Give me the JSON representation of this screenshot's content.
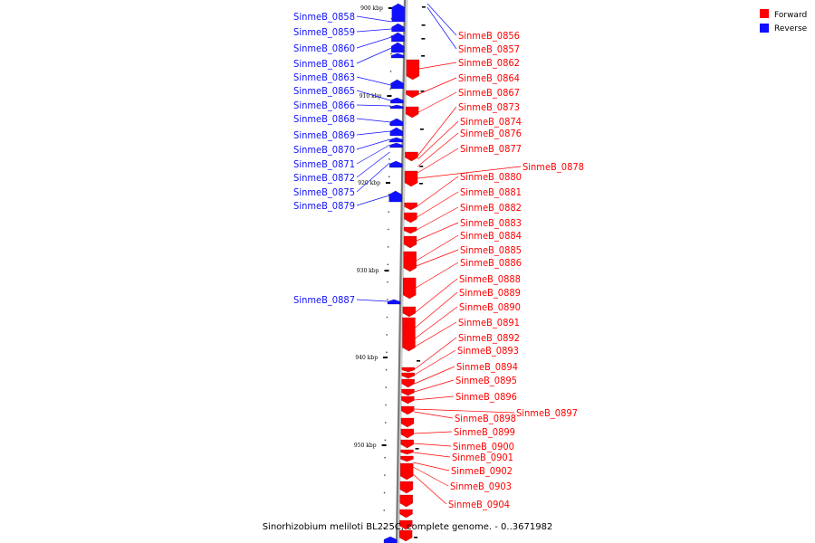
{
  "legend": {
    "forward_label": "Forward",
    "reverse_label": "Reverse",
    "forward_color": "#ff0000",
    "reverse_color": "#1010ff"
  },
  "caption": "Sinorhizobium meliloti BL225C, complete genome. - 0..3671982",
  "ticks": [
    "900 kbp",
    "910 kbp",
    "920 kbp",
    "930 kbp",
    "940 kbp",
    "950 kbp"
  ],
  "reverse_genes": [
    "SinmeB_0858",
    "SinmeB_0859",
    "SinmeB_0860",
    "SinmeB_0861",
    "SinmeB_0863",
    "SinmeB_0865",
    "SinmeB_0866",
    "SinmeB_0868",
    "SinmeB_0869",
    "SinmeB_0870",
    "SinmeB_0871",
    "SinmeB_0872",
    "SinmeB_0875",
    "SinmeB_0879",
    "SinmeB_0887"
  ],
  "forward_genes": [
    "SinmeB_0856",
    "SinmeB_0857",
    "SinmeB_0862",
    "SinmeB_0864",
    "SinmeB_0867",
    "SinmeB_0873",
    "SinmeB_0874",
    "SinmeB_0876",
    "SinmeB_0877",
    "SinmeB_0878",
    "SinmeB_0880",
    "SinmeB_0881",
    "SinmeB_0882",
    "SinmeB_0883",
    "SinmeB_0884",
    "SinmeB_0885",
    "SinmeB_0886",
    "SinmeB_0888",
    "SinmeB_0889",
    "SinmeB_0890",
    "SinmeB_0891",
    "SinmeB_0892",
    "SinmeB_0893",
    "SinmeB_0894",
    "SinmeB_0895",
    "SinmeB_0896",
    "SinmeB_0897",
    "SinmeB_0898",
    "SinmeB_0899",
    "SinmeB_0900",
    "SinmeB_0901",
    "SinmeB_0902",
    "SinmeB_0903",
    "SinmeB_0904"
  ]
}
